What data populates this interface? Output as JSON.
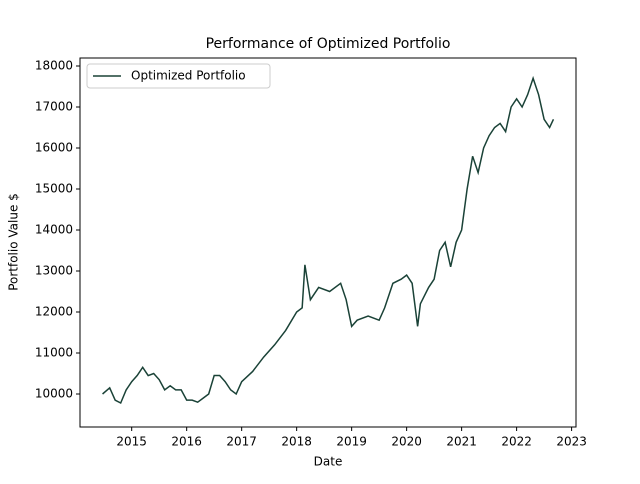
{
  "chart_data": {
    "type": "line",
    "title": "Performance of Optimized Portfolio",
    "xlabel": "Date",
    "ylabel": "Portfolio Value $",
    "x": [
      2014.47,
      2014.6,
      2014.7,
      2014.8,
      2014.9,
      2015.0,
      2015.1,
      2015.2,
      2015.3,
      2015.4,
      2015.5,
      2015.6,
      2015.7,
      2015.8,
      2015.9,
      2016.0,
      2016.1,
      2016.2,
      2016.3,
      2016.4,
      2016.5,
      2016.6,
      2016.7,
      2016.8,
      2016.9,
      2017.0,
      2017.2,
      2017.4,
      2017.6,
      2017.8,
      2018.0,
      2018.1,
      2018.15,
      2018.25,
      2018.4,
      2018.6,
      2018.8,
      2018.9,
      2019.0,
      2019.1,
      2019.3,
      2019.5,
      2019.6,
      2019.75,
      2019.9,
      2020.0,
      2020.1,
      2020.2,
      2020.25,
      2020.4,
      2020.5,
      2020.6,
      2020.7,
      2020.8,
      2020.9,
      2021.0,
      2021.1,
      2021.2,
      2021.3,
      2021.4,
      2021.5,
      2021.6,
      2021.7,
      2021.8,
      2021.9,
      2022.0,
      2022.1,
      2022.2,
      2022.3,
      2022.4,
      2022.5,
      2022.6,
      2022.67
    ],
    "series": [
      {
        "name": "Optimized Portfolio",
        "color": "#1a4237",
        "values": [
          10000,
          10150,
          9850,
          9780,
          10100,
          10300,
          10450,
          10650,
          10450,
          10500,
          10350,
          10100,
          10200,
          10100,
          10100,
          9850,
          9850,
          9800,
          9900,
          10000,
          10450,
          10450,
          10300,
          10100,
          10000,
          10300,
          10550,
          10900,
          11200,
          11550,
          12000,
          12100,
          13150,
          12300,
          12600,
          12500,
          12700,
          12300,
          11650,
          11800,
          11900,
          11800,
          12100,
          12700,
          12800,
          12900,
          12700,
          11650,
          12200,
          12600,
          12800,
          13500,
          13700,
          13100,
          13700,
          14000,
          15000,
          15800,
          15400,
          16000,
          16300,
          16500,
          16600,
          16400,
          17000,
          17200,
          17000,
          17300,
          17700,
          17300,
          16700,
          16500,
          16700
        ]
      }
    ],
    "xlim": [
      2014.06,
      2023.08
    ],
    "xticks": [
      2015,
      2016,
      2017,
      2018,
      2019,
      2020,
      2021,
      2022,
      2023
    ],
    "ylim": [
      9195,
      18195
    ],
    "yticks": [
      10000,
      11000,
      12000,
      13000,
      14000,
      15000,
      16000,
      17000,
      18000
    ],
    "grid": false,
    "legend": "upper-left"
  }
}
